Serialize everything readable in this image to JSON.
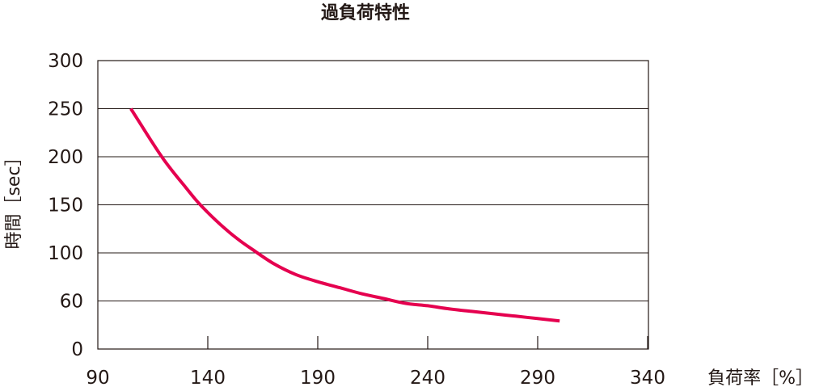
{
  "chart_data": {
    "type": "line",
    "title": "過負荷特性",
    "xlabel": "負荷率［%］",
    "ylabel": "時間［sec］",
    "x_ticks": [
      "90",
      "140",
      "190",
      "240",
      "290",
      "340"
    ],
    "y_ticks": [
      "0",
      "60",
      "100",
      "150",
      "200",
      "250",
      "300"
    ],
    "xlim": [
      90,
      340
    ],
    "grid": "horizontal",
    "legend": "none",
    "series": [
      {
        "color": "#e5004f",
        "x": [
          105,
          110,
          115,
          120,
          125,
          130,
          135,
          140,
          145,
          150,
          155,
          160,
          170,
          180,
          190,
          200,
          210,
          220,
          230,
          240,
          250,
          260,
          270,
          280,
          290,
          300
        ],
        "y": [
          250,
          232,
          214,
          197,
          182,
          168,
          154,
          142,
          131,
          121,
          112,
          104,
          91,
          82,
          76,
          71,
          66,
          62,
          57,
          54,
          50,
          47,
          44,
          41,
          38,
          35
        ]
      }
    ]
  }
}
